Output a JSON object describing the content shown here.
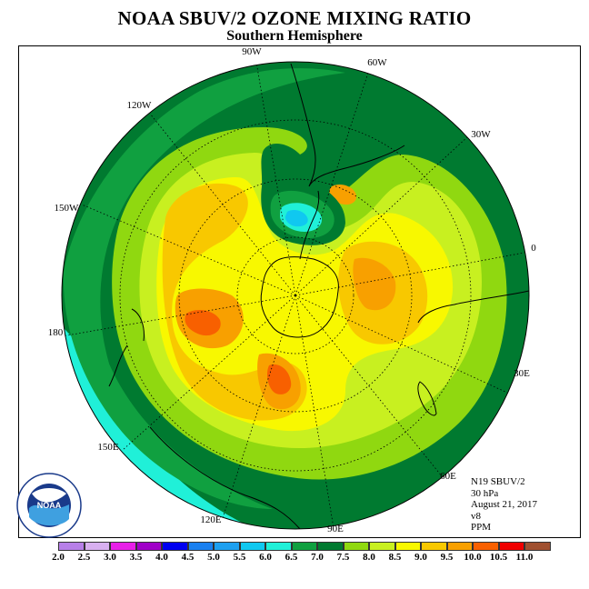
{
  "title": "NOAA SBUV/2 OZONE MIXING RATIO",
  "subtitle": "Southern Hemisphere",
  "info": {
    "satellite": "N19 SBUV/2",
    "pressure": "30 hPa",
    "date": "August 21, 2017",
    "version": "v8",
    "units": "PPM"
  },
  "longitude_labels": {
    "l90w": "90W",
    "l60w": "60W",
    "l30w": "30W",
    "l120w": "120W",
    "l150w": "150W",
    "l0": "0",
    "l180": "180",
    "l30e": "30E",
    "l150e": "150E",
    "l60e": "60E",
    "l120e": "120E",
    "l90e": "90E"
  },
  "colorbar": {
    "labels": [
      "2.0",
      "2.5",
      "3.0",
      "3.5",
      "4.0",
      "4.5",
      "5.0",
      "5.5",
      "6.0",
      "6.5",
      "7.0",
      "7.5",
      "8.0",
      "8.5",
      "9.0",
      "9.5",
      "10.0",
      "10.5",
      "11.0"
    ],
    "colors": [
      "#b77fe8",
      "#d8b0f0",
      "#e820e8",
      "#a000c8",
      "#0000f0",
      "#1a80f0",
      "#1ea0f0",
      "#10c8f0",
      "#20f0d8",
      "#10a040",
      "#007a30",
      "#90d810",
      "#c8f020",
      "#f8f800",
      "#f8c800",
      "#f8a000",
      "#f86000",
      "#f00000",
      "#a05030"
    ]
  },
  "logo": {
    "text": "NOAA",
    "ring_text": "NATIONAL OCEANIC AND ATMOSPHERIC ADMINISTRATION · U.S. DEPARTMENT OF COMMERCE"
  },
  "map_colors": {
    "c6_0": "#20f0d8",
    "c6_5": "#10a040",
    "c7_0": "#007a30",
    "c7_5": "#90d810",
    "c8_0": "#c8f020",
    "c8_5": "#f8f800",
    "c9_0": "#f8c800",
    "c9_5": "#f8a000",
    "c10_0": "#f86000",
    "c5_5": "#10c8f0"
  }
}
